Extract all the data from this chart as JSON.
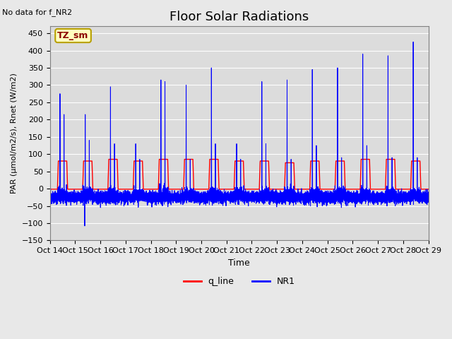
{
  "title": "Floor Solar Radiations",
  "subtitle": "No data for f_NR2",
  "xlabel": "Time",
  "ylabel": "PAR (μmol/m2/s), Rnet (W/m2)",
  "ylim": [
    -150,
    470
  ],
  "yticks": [
    -150,
    -100,
    -50,
    0,
    50,
    100,
    150,
    200,
    250,
    300,
    350,
    400,
    450
  ],
  "xlim": [
    0,
    15
  ],
  "xtick_labels": [
    "Oct 14",
    "Oct 15",
    "Oct 16",
    "Oct 17",
    "Oct 18",
    "Oct 19",
    "Oct 20",
    "Oct 21",
    "Oct 22",
    "Oct 23",
    "Oct 24",
    "Oct 25",
    "Oct 26",
    "Oct 27",
    "Oct 28",
    "Oct 29"
  ],
  "legend_label_q": "q_line",
  "legend_label_nr": "NR1",
  "tz_label": "TZ_sm",
  "tz_bg": "#ffffc0",
  "tz_border": "#b8a000",
  "fig_bg": "#e8e8e8",
  "plot_bg": "#dcdcdc",
  "grid_color": "#f0f0f0",
  "day_peaks_nr1": [
    275,
    215,
    295,
    130,
    315,
    300,
    350,
    130,
    310,
    315,
    345,
    350,
    390,
    385,
    425
  ],
  "day_peaks_secondary": [
    215,
    140,
    130,
    85,
    310,
    85,
    130,
    85,
    130,
    85,
    125,
    90,
    125,
    90,
    90
  ],
  "q_peaks": [
    80,
    80,
    85,
    80,
    85,
    85,
    85,
    80,
    80,
    75,
    80,
    80,
    85,
    85,
    80
  ],
  "night_base_nr1": -25,
  "dip_day": 1,
  "dip_value": -108
}
